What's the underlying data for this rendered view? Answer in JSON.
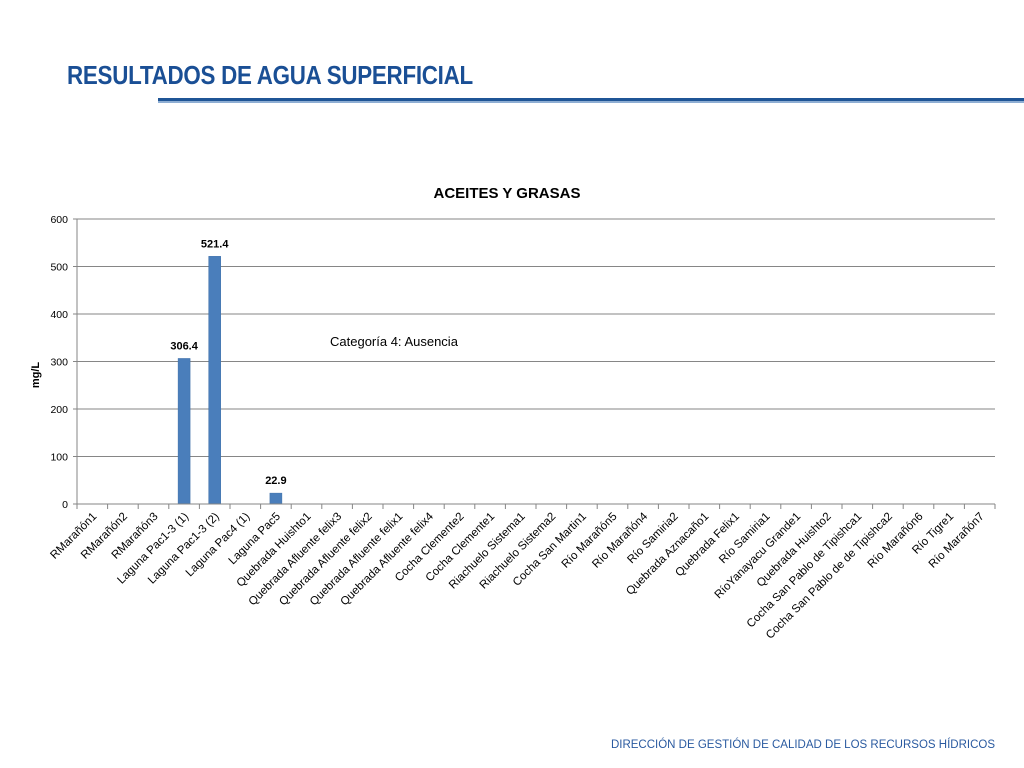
{
  "header": {
    "title": "RESULTADOS DE AGUA SUPERFICIAL"
  },
  "footer": {
    "text": "DIRECCIÓN DE GESTIÓN DE CALIDAD DE LOS RECURSOS HÍDRICOS"
  },
  "colors": {
    "title": "#1a4f95",
    "bar": "#4a7ebb",
    "footer": "#2a5aa0"
  },
  "chart_data": {
    "type": "bar",
    "title": "ACEITES Y GRASAS",
    "xlabel": "",
    "ylabel": "mg/L",
    "ylim": [
      0,
      600
    ],
    "yticks": [
      0,
      100,
      200,
      300,
      400,
      500,
      600
    ],
    "grid": true,
    "annotation": "Categoría 4: Ausencia",
    "categories": [
      "RMarañón1",
      "RMarañón2",
      "RMarañón3",
      "Laguna Pac1-3 (1)",
      "Laguna Pac1-3 (2)",
      "Laguna Pac4 (1)",
      "Laguna Pac5",
      "Quebrada Huishto1",
      "Quebrada Afluente felix3",
      "Quebrada Afluente felix2",
      "Quebrada Afluente felix1",
      "Quebrada Afluente felix4",
      "Cocha Clemente2",
      "Cocha Clemente1",
      "Riachuelo Sistema1",
      "Riachuelo Sistema2",
      "Cocha San Martin1",
      "Río Marañón5",
      "Río Marañón4",
      "Río Samiria2",
      "Quebrada Aznacaño1",
      "Quebrada Felix1",
      "Río Samiria1",
      "RíoYanayacu Grande1",
      "Quebrada Huishto2",
      "Cocha San Pablo de Tipishca1",
      "Cocha San Pablo de de Tipishca2",
      "Río Marañón6",
      "Río Tigre1",
      "Río Marañón7"
    ],
    "values": [
      null,
      null,
      null,
      306.4,
      521.4,
      null,
      22.9,
      null,
      null,
      null,
      null,
      null,
      null,
      null,
      null,
      null,
      null,
      null,
      null,
      null,
      null,
      null,
      null,
      null,
      null,
      null,
      null,
      null,
      null,
      null
    ],
    "data_labels": [
      null,
      null,
      null,
      "306.4",
      "521.4",
      null,
      "22.9",
      null,
      null,
      null,
      null,
      null,
      null,
      null,
      null,
      null,
      null,
      null,
      null,
      null,
      null,
      null,
      null,
      null,
      null,
      null,
      null,
      null,
      null,
      null
    ]
  }
}
